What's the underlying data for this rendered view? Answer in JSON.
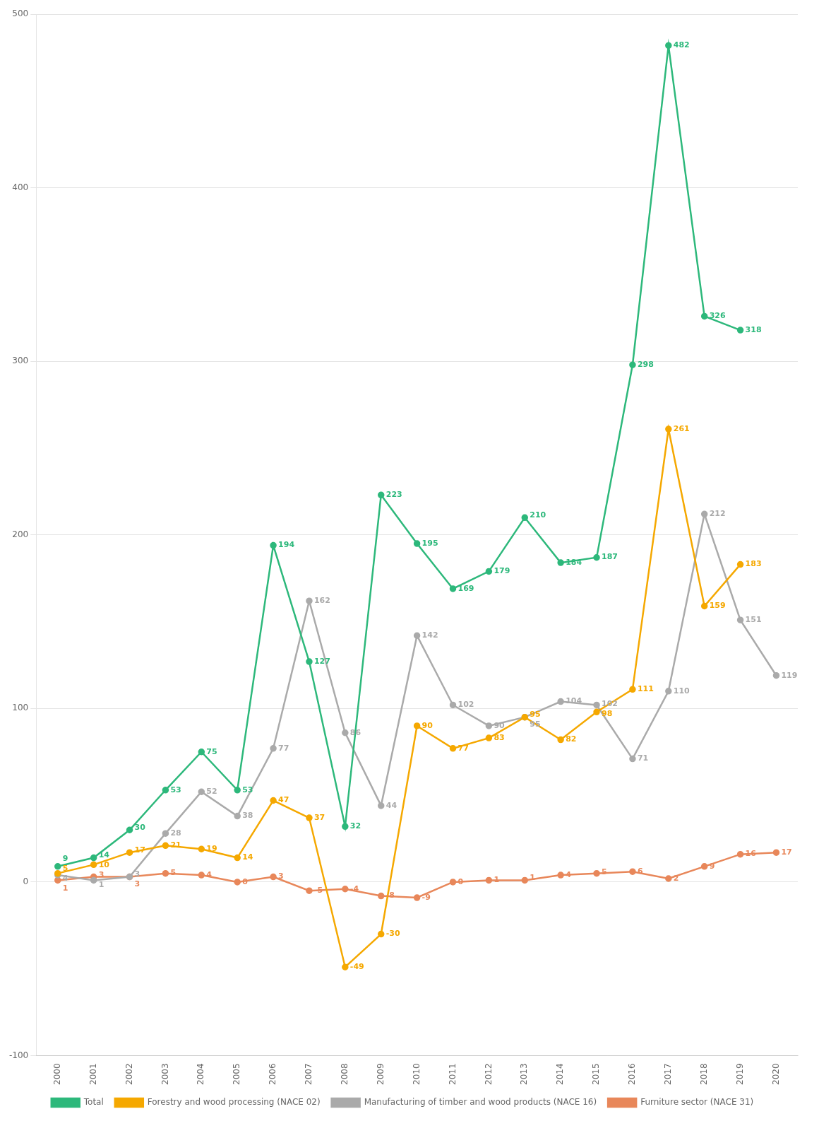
{
  "chart_data": {
    "type": "line",
    "x": [
      2000,
      2001,
      2002,
      2003,
      2004,
      2005,
      2006,
      2007,
      2008,
      2009,
      2010,
      2011,
      2012,
      2013,
      2014,
      2015,
      2016,
      2017,
      2018,
      2019,
      2020
    ],
    "xlim": [
      1999.4,
      2020.6
    ],
    "xticks": [
      2000,
      2001,
      2002,
      2003,
      2004,
      2005,
      2006,
      2007,
      2008,
      2009,
      2010,
      2011,
      2012,
      2013,
      2014,
      2015,
      2016,
      2017,
      2018,
      2019,
      2020
    ],
    "ylim": [
      -100,
      500
    ],
    "yticks": [
      -100,
      0,
      100,
      200,
      300,
      400,
      500
    ],
    "grid": true,
    "legend": "bottom",
    "data_labels": true,
    "marker": "circle",
    "series": [
      {
        "name": "Total",
        "color": "#2db87b",
        "values": [
          9,
          14,
          30,
          53,
          75,
          53,
          194,
          127,
          32,
          223,
          195,
          169,
          179,
          210,
          184,
          187,
          298,
          482,
          326,
          318,
          null
        ]
      },
      {
        "name": "Forestry and wood processing (NACE 02)",
        "color": "#f5a800",
        "values": [
          5,
          10,
          17,
          21,
          19,
          14,
          47,
          37,
          -49,
          -30,
          90,
          77,
          83,
          95,
          82,
          98,
          111,
          261,
          159,
          183,
          null
        ]
      },
      {
        "name": "Manufacturing of timber and wood products (NACE 16)",
        "color": "#aaaaaa",
        "values": [
          4,
          1,
          3,
          28,
          52,
          38,
          77,
          162,
          86,
          44,
          142,
          102,
          90,
          95,
          104,
          102,
          71,
          110,
          212,
          151,
          119
        ]
      },
      {
        "name": "Furniture sector (NACE 31)",
        "color": "#e8875a",
        "values": [
          1,
          3,
          3,
          5,
          4,
          0,
          3,
          -5,
          -4,
          -8,
          -9,
          0,
          1,
          1,
          4,
          5,
          6,
          2,
          9,
          16,
          17
        ]
      }
    ]
  }
}
